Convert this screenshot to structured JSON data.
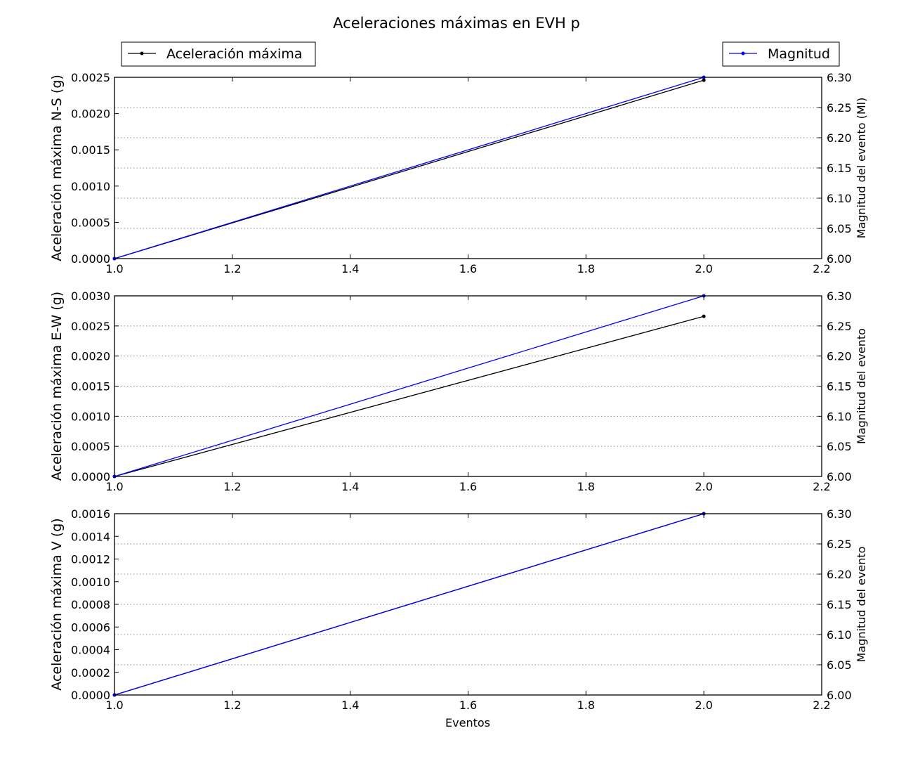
{
  "chart_data": {
    "title": "Aceleraciones máximas en EVH p",
    "legend_left": {
      "label": "Aceleración máxima",
      "color": "#000000",
      "placement": "top-left"
    },
    "legend_right": {
      "label": "Magnitud",
      "color": "#0000ff",
      "placement": "top-right"
    },
    "xlabel": "Eventos",
    "colors": {
      "acceleration": "#000000",
      "magnitude": "#0000ff",
      "grid": "#888888"
    },
    "subplots": [
      {
        "type": "line",
        "ylabel": "Aceleración máxima N-S (g)",
        "ylabel_right": "Magnitud del evento (Ml)",
        "xlim": [
          1.0,
          2.2
        ],
        "xticks": [
          "1.0",
          "1.2",
          "1.4",
          "1.6",
          "1.8",
          "2.0",
          "2.2"
        ],
        "ylim": [
          0,
          0.0025
        ],
        "yticks": [
          "0.0000",
          "0.0005",
          "0.0010",
          "0.0015",
          "0.0020",
          "0.0025"
        ],
        "ylim_right": [
          6.0,
          6.3
        ],
        "yticks_right": [
          "6.00",
          "6.05",
          "6.10",
          "6.15",
          "6.20",
          "6.25",
          "6.30"
        ],
        "grid": "right-axis dotted horizontal",
        "series": [
          {
            "name": "Aceleración máxima",
            "axis": "left",
            "x": [
              1,
              2
            ],
            "y": [
              0.0,
              0.00246
            ]
          },
          {
            "name": "Magnitud",
            "axis": "right",
            "x": [
              1,
              2
            ],
            "y": [
              6.0,
              6.3
            ]
          }
        ]
      },
      {
        "type": "line",
        "ylabel": "Aceleración máxima E-W (g)",
        "ylabel_right": "Magnitud del evento",
        "xlim": [
          1.0,
          2.2
        ],
        "xticks": [
          "1.0",
          "1.2",
          "1.4",
          "1.6",
          "1.8",
          "2.0",
          "2.2"
        ],
        "ylim": [
          0,
          0.003
        ],
        "yticks": [
          "0.0000",
          "0.0005",
          "0.0010",
          "0.0015",
          "0.0020",
          "0.0025",
          "0.0030"
        ],
        "ylim_right": [
          6.0,
          6.3
        ],
        "yticks_right": [
          "6.00",
          "6.05",
          "6.10",
          "6.15",
          "6.20",
          "6.25",
          "6.30"
        ],
        "grid": "right-axis dotted horizontal",
        "series": [
          {
            "name": "Aceleración máxima",
            "axis": "left",
            "x": [
              1,
              2
            ],
            "y": [
              0.0,
              0.00266
            ]
          },
          {
            "name": "Magnitud",
            "axis": "right",
            "x": [
              1,
              2
            ],
            "y": [
              6.0,
              6.3
            ]
          }
        ]
      },
      {
        "type": "line",
        "ylabel": "Aceleración máxima V (g)",
        "ylabel_right": "Magnitud del evento",
        "xlim": [
          1.0,
          2.2
        ],
        "xticks": [
          "1.0",
          "1.2",
          "1.4",
          "1.6",
          "1.8",
          "2.0",
          "2.2"
        ],
        "ylim": [
          0,
          0.0016
        ],
        "yticks": [
          "0.0000",
          "0.0002",
          "0.0004",
          "0.0006",
          "0.0008",
          "0.0010",
          "0.0012",
          "0.0014",
          "0.0016"
        ],
        "ylim_right": [
          6.0,
          6.3
        ],
        "yticks_right": [
          "6.00",
          "6.05",
          "6.10",
          "6.15",
          "6.20",
          "6.25",
          "6.30"
        ],
        "grid": "right-axis dotted horizontal",
        "series": [
          {
            "name": "Aceleración máxima",
            "axis": "left",
            "x": [
              1,
              2
            ],
            "y": [
              0.0,
              0.0016
            ]
          },
          {
            "name": "Magnitud",
            "axis": "right",
            "x": [
              1,
              2
            ],
            "y": [
              6.0,
              6.3
            ]
          }
        ]
      }
    ]
  }
}
